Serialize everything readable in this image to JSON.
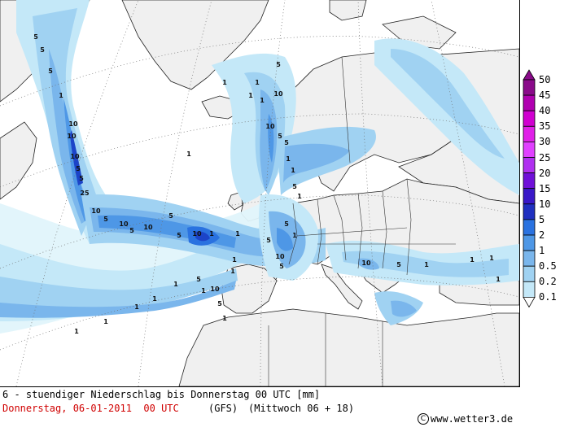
{
  "map": {
    "colors": {
      "sea": "#ffffff",
      "land": "#f0f0f0",
      "level_0_1": "#e0f4fb",
      "level_0_2": "#c4e8f8",
      "level_0_5": "#a0d2f2",
      "level_1": "#7ab6ec",
      "level_2": "#4e97e6",
      "level_5": "#2a72e0",
      "level_10": "#1c44c8",
      "level_15": "#2a24c0",
      "level_20": "#6010d0",
      "graticule": "#707070",
      "border": "#000000"
    },
    "contour_labels": [
      "5",
      "5",
      "5",
      "1",
      "10",
      "10",
      "10",
      "5",
      "5",
      "25",
      "10",
      "5",
      "10",
      "5",
      "10",
      "5",
      "5",
      "10",
      "1",
      "1",
      "5",
      "10",
      "1",
      "10",
      "5",
      "5",
      "1",
      "1",
      "5",
      "1",
      "5",
      "1",
      "5",
      "10",
      "5",
      "1",
      "1",
      "1",
      "1",
      "1",
      "1",
      "1",
      "1",
      "5",
      "10",
      "5",
      "1",
      "1",
      "1",
      "1",
      "1",
      "10",
      "5",
      "1",
      "1",
      "1",
      "1"
    ]
  },
  "legend": {
    "levels": [
      "50",
      "45",
      "40",
      "35",
      "30",
      "25",
      "20",
      "15",
      "10",
      "5",
      "2",
      "1",
      "0.5",
      "0.2",
      "0.1"
    ],
    "colors": [
      "#8a0a8a",
      "#b000b0",
      "#d000d0",
      "#e020e8",
      "#e040ff",
      "#b030f0",
      "#7010d8",
      "#3a18c8",
      "#2030c0",
      "#2a72e0",
      "#4e97e6",
      "#7ab6ec",
      "#a0d2f2",
      "#c4e8f8",
      "#e0f4fb"
    ]
  },
  "footer": {
    "line1": "6 - stuendiger Niederschlag bis Donnerstag 00 UTC [mm]",
    "date": "Donnerstag, 06-01-2011  00 UTC",
    "model": "(GFS)",
    "reference": "(Mittwoch 06 + 18)",
    "copyright_symbol": "C",
    "website": "www.wetter3.de"
  }
}
